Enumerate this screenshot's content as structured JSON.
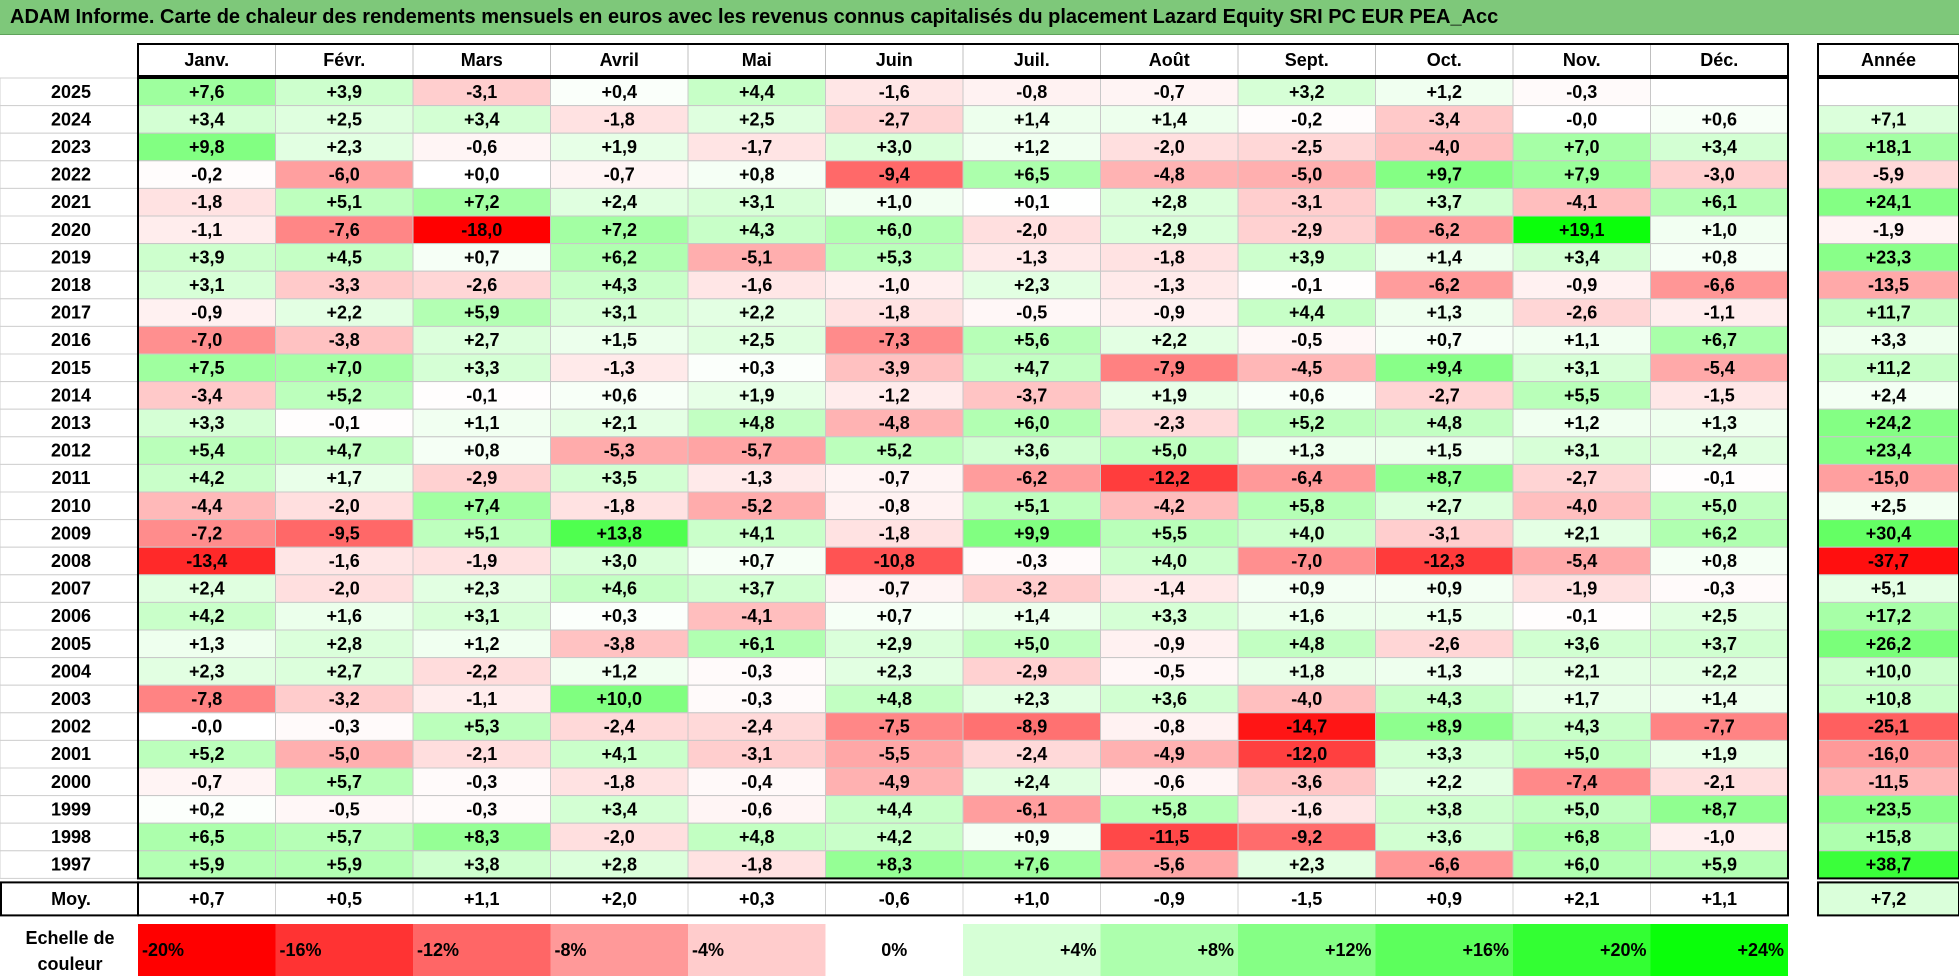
{
  "title": "ADAM Informe. Carte de chaleur des rendements mensuels en euros avec les revenus connus capitalisés du placement Lazard Equity SRI PC EUR PEA_Acc",
  "chart_data": {
    "type": "heatmap",
    "columns": [
      "Janv.",
      "Févr.",
      "Mars",
      "Avril",
      "Mai",
      "Juin",
      "Juil.",
      "Août",
      "Sept.",
      "Oct.",
      "Nov.",
      "Déc."
    ],
    "year_column_label": "Année",
    "rows": [
      {
        "label": "2025",
        "values": [
          "+7,6",
          "+3,9",
          "-3,1",
          "+0,4",
          "+4,4",
          "-1,6",
          "-0,8",
          "-0,7",
          "+3,2",
          "+1,2",
          "-0,3",
          ""
        ],
        "year": ""
      },
      {
        "label": "2024",
        "values": [
          "+3,4",
          "+2,5",
          "+3,4",
          "-1,8",
          "+2,5",
          "-2,7",
          "+1,4",
          "+1,4",
          "-0,2",
          "-3,4",
          "-0,0",
          "+0,6"
        ],
        "year": "+7,1"
      },
      {
        "label": "2023",
        "values": [
          "+9,8",
          "+2,3",
          "-0,6",
          "+1,9",
          "-1,7",
          "+3,0",
          "+1,2",
          "-2,0",
          "-2,5",
          "-4,0",
          "+7,0",
          "+3,4"
        ],
        "year": "+18,1"
      },
      {
        "label": "2022",
        "values": [
          "-0,2",
          "-6,0",
          "+0,0",
          "-0,7",
          "+0,8",
          "-9,4",
          "+6,5",
          "-4,8",
          "-5,0",
          "+9,7",
          "+7,9",
          "-3,0"
        ],
        "year": "-5,9"
      },
      {
        "label": "2021",
        "values": [
          "-1,8",
          "+5,1",
          "+7,2",
          "+2,4",
          "+3,1",
          "+1,0",
          "+0,1",
          "+2,8",
          "-3,1",
          "+3,7",
          "-4,1",
          "+6,1"
        ],
        "year": "+24,1"
      },
      {
        "label": "2020",
        "values": [
          "-1,1",
          "-7,6",
          "-18,0",
          "+7,2",
          "+4,3",
          "+6,0",
          "-2,0",
          "+2,9",
          "-2,9",
          "-6,2",
          "+19,1",
          "+1,0"
        ],
        "year": "-1,9"
      },
      {
        "label": "2019",
        "values": [
          "+3,9",
          "+4,5",
          "+0,7",
          "+6,2",
          "-5,1",
          "+5,3",
          "-1,3",
          "-1,8",
          "+3,9",
          "+1,4",
          "+3,4",
          "+0,8"
        ],
        "year": "+23,3"
      },
      {
        "label": "2018",
        "values": [
          "+3,1",
          "-3,3",
          "-2,6",
          "+4,3",
          "-1,6",
          "-1,0",
          "+2,3",
          "-1,3",
          "-0,1",
          "-6,2",
          "-0,9",
          "-6,6"
        ],
        "year": "-13,5"
      },
      {
        "label": "2017",
        "values": [
          "-0,9",
          "+2,2",
          "+5,9",
          "+3,1",
          "+2,2",
          "-1,8",
          "-0,5",
          "-0,9",
          "+4,4",
          "+1,3",
          "-2,6",
          "-1,1"
        ],
        "year": "+11,7"
      },
      {
        "label": "2016",
        "values": [
          "-7,0",
          "-3,8",
          "+2,7",
          "+1,5",
          "+2,5",
          "-7,3",
          "+5,6",
          "+2,2",
          "-0,5",
          "+0,7",
          "+1,1",
          "+6,7"
        ],
        "year": "+3,3"
      },
      {
        "label": "2015",
        "values": [
          "+7,5",
          "+7,0",
          "+3,3",
          "-1,3",
          "+0,3",
          "-3,9",
          "+4,7",
          "-7,9",
          "-4,5",
          "+9,4",
          "+3,1",
          "-5,4"
        ],
        "year": "+11,2"
      },
      {
        "label": "2014",
        "values": [
          "-3,4",
          "+5,2",
          "-0,1",
          "+0,6",
          "+1,9",
          "-1,2",
          "-3,7",
          "+1,9",
          "+0,6",
          "-2,7",
          "+5,5",
          "-1,5"
        ],
        "year": "+2,4"
      },
      {
        "label": "2013",
        "values": [
          "+3,3",
          "-0,1",
          "+1,1",
          "+2,1",
          "+4,8",
          "-4,8",
          "+6,0",
          "-2,3",
          "+5,2",
          "+4,8",
          "+1,2",
          "+1,3"
        ],
        "year": "+24,2"
      },
      {
        "label": "2012",
        "values": [
          "+5,4",
          "+4,7",
          "+0,8",
          "-5,3",
          "-5,7",
          "+5,2",
          "+3,6",
          "+5,0",
          "+1,3",
          "+1,5",
          "+3,1",
          "+2,4"
        ],
        "year": "+23,4"
      },
      {
        "label": "2011",
        "values": [
          "+4,2",
          "+1,7",
          "-2,9",
          "+3,5",
          "-1,3",
          "-0,7",
          "-6,2",
          "-12,2",
          "-6,4",
          "+8,7",
          "-2,7",
          "-0,1"
        ],
        "year": "-15,0"
      },
      {
        "label": "2010",
        "values": [
          "-4,4",
          "-2,0",
          "+7,4",
          "-1,8",
          "-5,2",
          "-0,8",
          "+5,1",
          "-4,2",
          "+5,8",
          "+2,7",
          "-4,0",
          "+5,0"
        ],
        "year": "+2,5"
      },
      {
        "label": "2009",
        "values": [
          "-7,2",
          "-9,5",
          "+5,1",
          "+13,8",
          "+4,1",
          "-1,8",
          "+9,9",
          "+5,5",
          "+4,0",
          "-3,1",
          "+2,1",
          "+6,2"
        ],
        "year": "+30,4"
      },
      {
        "label": "2008",
        "values": [
          "-13,4",
          "-1,6",
          "-1,9",
          "+3,0",
          "+0,7",
          "-10,8",
          "-0,3",
          "+4,0",
          "-7,0",
          "-12,3",
          "-5,4",
          "+0,8"
        ],
        "year": "-37,7"
      },
      {
        "label": "2007",
        "values": [
          "+2,4",
          "-2,0",
          "+2,3",
          "+4,6",
          "+3,7",
          "-0,7",
          "-3,2",
          "-1,4",
          "+0,9",
          "+0,9",
          "-1,9",
          "-0,3"
        ],
        "year": "+5,1"
      },
      {
        "label": "2006",
        "values": [
          "+4,2",
          "+1,6",
          "+3,1",
          "+0,3",
          "-4,1",
          "+0,7",
          "+1,4",
          "+3,3",
          "+1,6",
          "+1,5",
          "-0,1",
          "+2,5"
        ],
        "year": "+17,2"
      },
      {
        "label": "2005",
        "values": [
          "+1,3",
          "+2,8",
          "+1,2",
          "-3,8",
          "+6,1",
          "+2,9",
          "+5,0",
          "-0,9",
          "+4,8",
          "-2,6",
          "+3,6",
          "+3,7"
        ],
        "year": "+26,2"
      },
      {
        "label": "2004",
        "values": [
          "+2,3",
          "+2,7",
          "-2,2",
          "+1,2",
          "-0,3",
          "+2,3",
          "-2,9",
          "-0,5",
          "+1,8",
          "+1,3",
          "+2,1",
          "+2,2"
        ],
        "year": "+10,0"
      },
      {
        "label": "2003",
        "values": [
          "-7,8",
          "-3,2",
          "-1,1",
          "+10,0",
          "-0,3",
          "+4,8",
          "+2,3",
          "+3,6",
          "-4,0",
          "+4,3",
          "+1,7",
          "+1,4"
        ],
        "year": "+10,8"
      },
      {
        "label": "2002",
        "values": [
          "-0,0",
          "-0,3",
          "+5,3",
          "-2,4",
          "-2,4",
          "-7,5",
          "-8,9",
          "-0,8",
          "-14,7",
          "+8,9",
          "+4,3",
          "-7,7"
        ],
        "year": "-25,1"
      },
      {
        "label": "2001",
        "values": [
          "+5,2",
          "-5,0",
          "-2,1",
          "+4,1",
          "-3,1",
          "-5,5",
          "-2,4",
          "-4,9",
          "-12,0",
          "+3,3",
          "+5,0",
          "+1,9"
        ],
        "year": "-16,0"
      },
      {
        "label": "2000",
        "values": [
          "-0,7",
          "+5,7",
          "-0,3",
          "-1,8",
          "-0,4",
          "-4,9",
          "+2,4",
          "-0,6",
          "-3,6",
          "+2,2",
          "-7,4",
          "-2,1"
        ],
        "year": "-11,5"
      },
      {
        "label": "1999",
        "values": [
          "+0,2",
          "-0,5",
          "-0,3",
          "+3,4",
          "-0,6",
          "+4,4",
          "-6,1",
          "+5,8",
          "-1,6",
          "+3,8",
          "+5,0",
          "+8,7"
        ],
        "year": "+23,5"
      },
      {
        "label": "1998",
        "values": [
          "+6,5",
          "+5,7",
          "+8,3",
          "-2,0",
          "+4,8",
          "+4,2",
          "+0,9",
          "-11,5",
          "-9,2",
          "+3,6",
          "+6,8",
          "-1,0"
        ],
        "year": "+15,8"
      },
      {
        "label": "1997",
        "values": [
          "+5,9",
          "+5,9",
          "+3,8",
          "+2,8",
          "-1,8",
          "+8,3",
          "+7,6",
          "-5,6",
          "+2,3",
          "-6,6",
          "+6,0",
          "+5,9"
        ],
        "year": "+38,7"
      }
    ],
    "average_row": {
      "label": "Moy.",
      "values": [
        "+0,7",
        "+0,5",
        "+1,1",
        "+2,0",
        "+0,3",
        "-0,6",
        "+1,0",
        "-0,9",
        "-1,5",
        "+0,9",
        "+2,1",
        "+1,1"
      ],
      "year": "+7,2"
    },
    "scale_label_line1": "Echelle de",
    "scale_label_line2": "couleur",
    "scale": [
      {
        "label": "-20%",
        "value": -20,
        "color": "#ff0000"
      },
      {
        "label": "-16%",
        "value": -16,
        "color": "#ff3333"
      },
      {
        "label": "-12%",
        "value": -12,
        "color": "#ff6666"
      },
      {
        "label": "-8%",
        "value": -8,
        "color": "#ff9999"
      },
      {
        "label": "-4%",
        "value": -4,
        "color": "#ffcccc"
      },
      {
        "label": "0%",
        "value": 0,
        "color": "#ffffff"
      },
      {
        "label": "+4%",
        "value": 4,
        "color": "#d6ffd6"
      },
      {
        "label": "+8%",
        "value": 8,
        "color": "#adffad"
      },
      {
        "label": "+12%",
        "value": 12,
        "color": "#85ff85"
      },
      {
        "label": "+16%",
        "value": 16,
        "color": "#5cff5c"
      },
      {
        "label": "+20%",
        "value": 20,
        "color": "#33ff33"
      },
      {
        "label": "+24%",
        "value": 24,
        "color": "#0aff0a"
      }
    ]
  }
}
